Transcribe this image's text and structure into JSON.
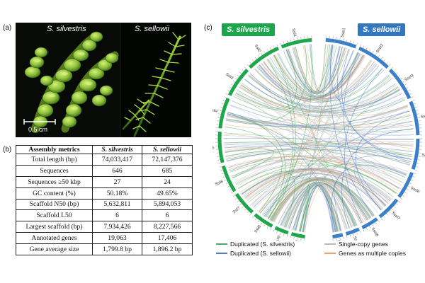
{
  "panels": {
    "a": "(a)",
    "b": "(b)",
    "c": "(c)"
  },
  "photos": {
    "left_title": "S. silvestris",
    "right_title": "S. sellowii",
    "scale_bar_label": "0.5 cm"
  },
  "table": {
    "headers": [
      "Assembly metrics",
      "S. silvestris",
      "S. sellowii"
    ],
    "rows": [
      [
        "Total length (bp)",
        "74,033,417",
        "72,147,376"
      ],
      [
        "Sequences",
        "646",
        "685"
      ],
      [
        "Sequences ≥50 kbp",
        "27",
        "24"
      ],
      [
        "GC content (%)",
        "50.18%",
        "49.65%"
      ],
      [
        "Scaffold N50 (bp)",
        "5,632,811",
        "5,894,053"
      ],
      [
        "Scaffold L50",
        "6",
        "6"
      ],
      [
        "Largest scaffold (bp)",
        "7,934,426",
        "8,227,566"
      ],
      [
        "Annotated genes",
        "19,063",
        "17,406"
      ],
      [
        "Gene average size",
        "1,799.8 bp",
        "1,896.2 bp"
      ]
    ]
  },
  "circos": {
    "species_left": "S. silvestris",
    "species_right": "S. sellowii",
    "colors": {
      "silvestris": "#1ea64a",
      "sellowii": "#3a7fc8",
      "silvestris_tag": "#1aa64a",
      "sellowii_tag": "#3377c0",
      "dup_silvestris": "#4caa5a",
      "dup_sellowii": "#4a7fd0",
      "single_copy": "#b9b9b9",
      "multi_copy": "#e8a06a"
    },
    "left_scaffolds": [
      "Ssil1",
      "Ssil2",
      "Ssil3",
      "Ssil4",
      "Ssil5",
      "Ssil6",
      "Ssil7",
      "Ssil8",
      "Ssil9",
      "Ssil10"
    ],
    "right_scaffolds": [
      "Ssel1",
      "Ssel2",
      "Ssel3",
      "Ssel4",
      "Ssel5",
      "Ssel6",
      "Ssel7",
      "Ssel8",
      "Ssel9",
      "Ssel10"
    ],
    "legend": [
      {
        "label": "Duplicated (S. silvestris)",
        "color": "#4caa5a"
      },
      {
        "label": "Single-copy genes",
        "color": "#b9b9b9"
      },
      {
        "label": "Duplicated (S. sellowii)",
        "color": "#4a7fd0"
      },
      {
        "label": "Genes as multiple copies",
        "color": "#e8a06a"
      }
    ]
  }
}
